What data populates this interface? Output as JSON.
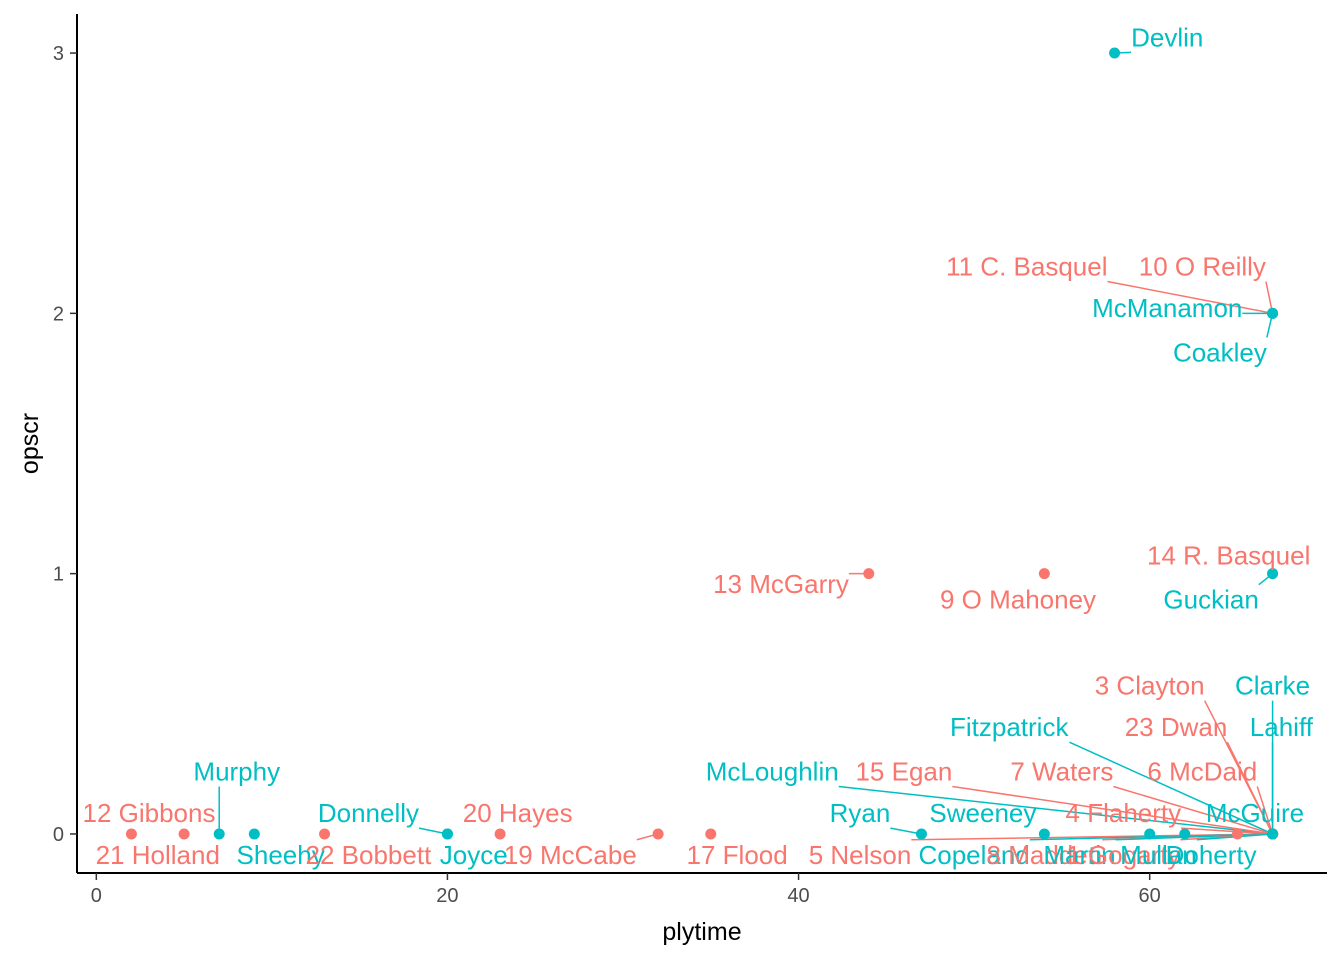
{
  "chart_data": {
    "type": "scatter",
    "title": "",
    "xlabel": "plytime",
    "ylabel": "opscr",
    "xlim": [
      -1.1,
      70.1
    ],
    "ylim": [
      -0.15,
      3.15
    ],
    "x_ticks": [
      "0",
      "20",
      "40",
      "60"
    ],
    "x_tick_values": [
      0,
      20,
      40,
      60
    ],
    "y_ticks": [
      "0",
      "1",
      "2",
      "3"
    ],
    "y_tick_values": [
      0,
      1,
      2,
      3
    ],
    "grid": false,
    "legend": "none",
    "colors": {
      "group_a": "#F8766D",
      "group_b": "#00BFC4"
    },
    "points": [
      {
        "label": "Devlin",
        "x": 58,
        "y": 3,
        "group": "group_b",
        "lx": 61,
        "ly": 3.06
      },
      {
        "label": "11 C. Basquel",
        "x": 67,
        "y": 2,
        "group": "group_a",
        "lx": 53,
        "ly": 2.18
      },
      {
        "label": "10  O Reilly",
        "x": 67,
        "y": 2,
        "group": "group_a",
        "lx": 63,
        "ly": 2.18
      },
      {
        "label": "McManamon",
        "x": 67,
        "y": 2,
        "group": "group_b",
        "lx": 61,
        "ly": 2.02
      },
      {
        "label": "Coakley",
        "x": 67,
        "y": 2,
        "group": "group_b",
        "lx": 64,
        "ly": 1.85
      },
      {
        "label": "13 McGarry",
        "x": 44,
        "y": 1,
        "group": "group_a",
        "lx": 39,
        "ly": 0.96
      },
      {
        "label": "9 O Mahoney",
        "x": 54,
        "y": 1,
        "group": "group_a",
        "lx": 52.5,
        "ly": 0.9
      },
      {
        "label": "14 R. Basquel",
        "x": 67,
        "y": 1,
        "group": "group_a",
        "lx": 64.5,
        "ly": 1.07
      },
      {
        "label": "Guckian",
        "x": 67,
        "y": 1,
        "group": "group_b",
        "lx": 63.5,
        "ly": 0.9
      },
      {
        "label": "3 Clayton",
        "x": 67,
        "y": 0,
        "group": "group_a",
        "lx": 60,
        "ly": 0.57
      },
      {
        "label": "Clarke",
        "x": 67,
        "y": 0,
        "group": "group_b",
        "lx": 67,
        "ly": 0.57
      },
      {
        "label": "Fitzpatrick",
        "x": 67,
        "y": 0,
        "group": "group_b",
        "lx": 52,
        "ly": 0.41
      },
      {
        "label": "23 Dwan",
        "x": 67,
        "y": 0,
        "group": "group_a",
        "lx": 61.5,
        "ly": 0.41
      },
      {
        "label": "Lahiff",
        "x": 67,
        "y": 0,
        "group": "group_b",
        "lx": 67.5,
        "ly": 0.41
      },
      {
        "label": "McLoughlin",
        "x": 67,
        "y": 0,
        "group": "group_b",
        "lx": 38.5,
        "ly": 0.24
      },
      {
        "label": "15 Egan",
        "x": 67,
        "y": 0,
        "group": "group_a",
        "lx": 46,
        "ly": 0.24
      },
      {
        "label": "7 Waters",
        "x": 67,
        "y": 0,
        "group": "group_a",
        "lx": 55,
        "ly": 0.24
      },
      {
        "label": "6 McDaid",
        "x": 67,
        "y": 0,
        "group": "group_a",
        "lx": 63,
        "ly": 0.24
      },
      {
        "label": "Ryan",
        "x": 47,
        "y": 0,
        "group": "group_b",
        "lx": 43.5,
        "ly": 0.08
      },
      {
        "label": "Sweeney",
        "x": 54,
        "y": 0,
        "group": "group_b",
        "lx": 50.5,
        "ly": 0.08
      },
      {
        "label": "4 Flaherty",
        "x": 67,
        "y": 0,
        "group": "group_a",
        "lx": 58.5,
        "ly": 0.08
      },
      {
        "label": "McGuire",
        "x": 67,
        "y": 0,
        "group": "group_b",
        "lx": 66,
        "ly": 0.08
      },
      {
        "label": "12 Gibbons",
        "x": 2,
        "y": 0,
        "group": "group_a",
        "lx": 3,
        "ly": 0.08
      },
      {
        "label": "Murphy",
        "x": 7,
        "y": 0,
        "group": "group_b",
        "lx": 8,
        "ly": 0.24
      },
      {
        "label": "Donnelly",
        "x": 20,
        "y": 0,
        "group": "group_b",
        "lx": 15.5,
        "ly": 0.08
      },
      {
        "label": "20 Hayes",
        "x": 23,
        "y": 0,
        "group": "group_a",
        "lx": 24,
        "ly": 0.08
      },
      {
        "label": "21 Holland",
        "x": 5,
        "y": 0,
        "group": "group_a",
        "lx": 3.5,
        "ly": -0.08
      },
      {
        "label": "Sheehy",
        "x": 9,
        "y": 0,
        "group": "group_b",
        "lx": 10.5,
        "ly": -0.08
      },
      {
        "label": "22 Bobbett",
        "x": 13,
        "y": 0,
        "group": "group_a",
        "lx": 15.5,
        "ly": -0.08
      },
      {
        "label": "Joyce",
        "x": 20,
        "y": 0,
        "group": "group_b",
        "lx": 21.5,
        "ly": -0.08
      },
      {
        "label": "19 McCabe",
        "x": 32,
        "y": 0,
        "group": "group_a",
        "lx": 27,
        "ly": -0.08
      },
      {
        "label": "17 Flood",
        "x": 35,
        "y": 0,
        "group": "group_a",
        "lx": 36.5,
        "ly": -0.08
      },
      {
        "label": "5 Nelson",
        "x": 67,
        "y": 0,
        "group": "group_a",
        "lx": 43.5,
        "ly": -0.08
      },
      {
        "label": "Copeland",
        "x": 67,
        "y": 0,
        "group": "group_b",
        "lx": 50,
        "ly": -0.08
      },
      {
        "label": "8 Madden",
        "x": 67,
        "y": 0,
        "group": "group_a",
        "lx": 54,
        "ly": -0.08
      },
      {
        "label": "Martin",
        "x": 67,
        "y": 0,
        "group": "group_b",
        "lx": 56,
        "ly": -0.08
      },
      {
        "label": "1 Gogarty",
        "x": 67,
        "y": 0,
        "group": "group_a",
        "lx": 58.5,
        "ly": -0.08
      },
      {
        "label": "Mullan",
        "x": 67,
        "y": 0,
        "group": "group_b",
        "lx": 60.5,
        "ly": -0.08
      },
      {
        "label": "Doherty",
        "x": 62,
        "y": 0,
        "group": "group_b",
        "lx": 63.5,
        "ly": -0.08
      },
      {
        "label": "",
        "x": 60,
        "y": 0,
        "group": "group_b",
        "lx": 60,
        "ly": 0
      },
      {
        "label": "",
        "x": 65,
        "y": 0,
        "group": "group_a",
        "lx": 65,
        "ly": 0
      }
    ]
  }
}
